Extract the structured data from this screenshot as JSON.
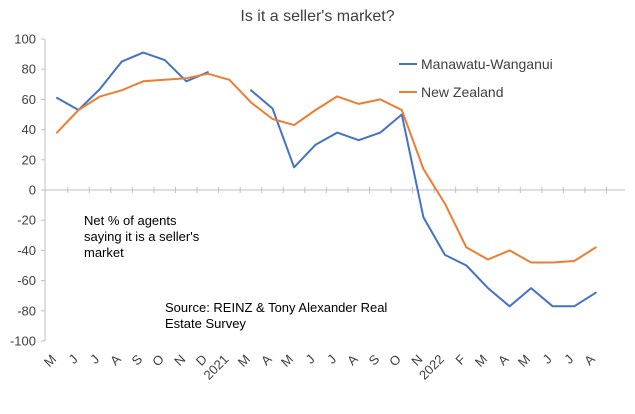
{
  "chart_data": {
    "type": "line",
    "title": "Is it a seller's market?",
    "ylim": [
      -100,
      100
    ],
    "yticks": [
      100,
      80,
      60,
      40,
      20,
      0,
      -20,
      -40,
      -60,
      -80,
      -100
    ],
    "categories": [
      "M",
      "J",
      "J",
      "A",
      "S",
      "O",
      "N",
      "D",
      "2021",
      "M",
      "A",
      "M",
      "J",
      "J",
      "A",
      "S",
      "O",
      "N",
      "2022",
      "F",
      "M",
      "A",
      "M",
      "J",
      "J",
      "A"
    ],
    "grid": false,
    "legend_position": "top-right",
    "series": [
      {
        "name": "Manawatu-Wanganui",
        "color": "#4472C4",
        "values": [
          61,
          53,
          67,
          85,
          91,
          86,
          72,
          78,
          null,
          66,
          54,
          15,
          30,
          38,
          33,
          38,
          50,
          -18,
          -43,
          -50,
          -65,
          -77,
          -65,
          -77,
          -77,
          -68
        ]
      },
      {
        "name": "New Zealand",
        "color": "#ED7D31",
        "values": [
          38,
          53,
          62,
          66,
          72,
          73,
          74,
          77,
          73,
          58,
          47,
          43,
          53,
          62,
          57,
          60,
          53,
          14,
          -9,
          -38,
          -46,
          -40,
          -48,
          -48,
          -47,
          -38
        ]
      }
    ],
    "annotations": [
      {
        "lines": [
          "Net % of agents",
          "saying it is a seller's",
          "market"
        ]
      },
      {
        "lines": [
          "Source: REINZ & Tony Alexander  Real",
          "Estate Survey"
        ]
      }
    ]
  }
}
